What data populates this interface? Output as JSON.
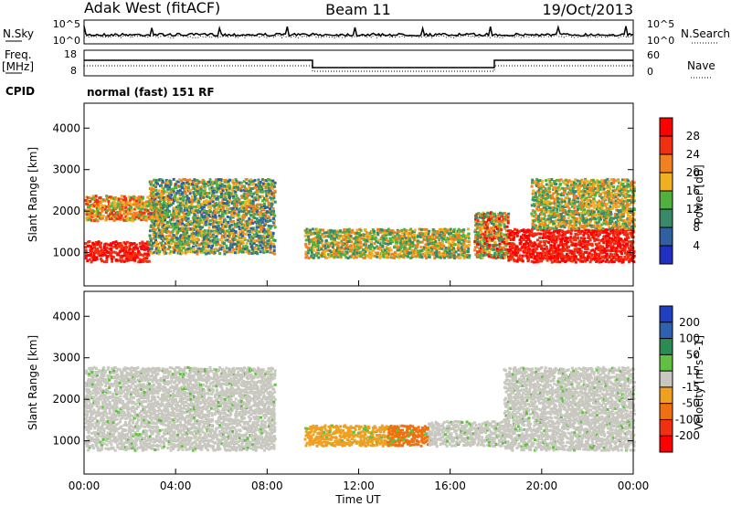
{
  "header": {
    "station": "Adak West (fitACF)",
    "beam": "Beam 11",
    "date": "19/Oct/2013"
  },
  "strip_panels": {
    "noise": {
      "left_label": "N.Sky",
      "right_label": "N.Search",
      "left_ticks": [
        "10^5",
        "10^0"
      ],
      "right_ticks": [
        "10^5",
        "10^0"
      ]
    },
    "freq": {
      "left_label_1": "Freq.",
      "left_label_2": "[MHz]",
      "right_label": "Nave",
      "left_ticks": [
        "18",
        "8"
      ],
      "right_ticks": [
        "60",
        "0"
      ]
    },
    "cpid": {
      "label": "CPID",
      "program": "normal (fast) 151 RF"
    }
  },
  "chart_data": [
    {
      "type": "heatmap",
      "title": "",
      "xlabel": "Time UT",
      "ylabel": "Slant Range [km]",
      "x_ticks": [
        "00:00",
        "04:00",
        "08:00",
        "12:00",
        "16:00",
        "20:00",
        "00:00"
      ],
      "y_ticks": [
        "1000",
        "2000",
        "3000",
        "4000"
      ],
      "ylim": [
        200,
        4600
      ],
      "colorbar": {
        "label": "Power [dB]",
        "ticks": [
          "4",
          "8",
          "12",
          "16",
          "20",
          "24",
          "28"
        ],
        "range": [
          0,
          30
        ]
      },
      "echo_regions": [
        {
          "t_start_h": 0.0,
          "t_end_h": 2.8,
          "range_km": [
            800,
            1300
          ],
          "level": "28+"
        },
        {
          "t_start_h": 0.0,
          "t_end_h": 3.5,
          "range_km": [
            1800,
            2400
          ],
          "level": "16-24"
        },
        {
          "t_start_h": 2.8,
          "t_end_h": 8.3,
          "range_km": [
            1000,
            2800
          ],
          "level": "8-24"
        },
        {
          "t_start_h": 9.6,
          "t_end_h": 16.8,
          "range_km": [
            900,
            1600
          ],
          "level": "12-24"
        },
        {
          "t_start_h": 17.0,
          "t_end_h": 18.5,
          "range_km": [
            900,
            2000
          ],
          "level": "12-28"
        },
        {
          "t_start_h": 18.5,
          "t_end_h": 24.0,
          "range_km": [
            800,
            1600
          ],
          "level": "28+"
        },
        {
          "t_start_h": 19.5,
          "t_end_h": 24.0,
          "range_km": [
            1600,
            2800
          ],
          "level": "12-24"
        }
      ]
    },
    {
      "type": "heatmap",
      "title": "",
      "xlabel": "Time UT",
      "ylabel": "Slant Range [km]",
      "x_ticks": [
        "00:00",
        "04:00",
        "08:00",
        "12:00",
        "16:00",
        "20:00",
        "00:00"
      ],
      "y_ticks": [
        "1000",
        "2000",
        "3000",
        "4000"
      ],
      "ylim": [
        200,
        4600
      ],
      "colorbar": {
        "label": "Velocity [m s^-1]",
        "ticks": [
          "200",
          "100",
          "50",
          "15",
          "-15",
          "-50",
          "-100",
          "-200"
        ],
        "range": [
          -250,
          250
        ]
      },
      "echo_regions": [
        {
          "t_start_h": 0.0,
          "t_end_h": 8.3,
          "range_km": [
            800,
            2800
          ],
          "velocity": "-15..15 (ground scatter)"
        },
        {
          "t_start_h": 9.6,
          "t_end_h": 13.8,
          "range_km": [
            900,
            1400
          ],
          "velocity": "-50..-15"
        },
        {
          "t_start_h": 13.2,
          "t_end_h": 15.0,
          "range_km": [
            900,
            1400
          ],
          "velocity": "-100..-50"
        },
        {
          "t_start_h": 15.0,
          "t_end_h": 18.3,
          "range_km": [
            900,
            1500
          ],
          "velocity": "-15..15"
        },
        {
          "t_start_h": 18.3,
          "t_end_h": 24.0,
          "range_km": [
            800,
            2800
          ],
          "velocity": "-15..15 (ground scatter)"
        }
      ]
    }
  ]
}
